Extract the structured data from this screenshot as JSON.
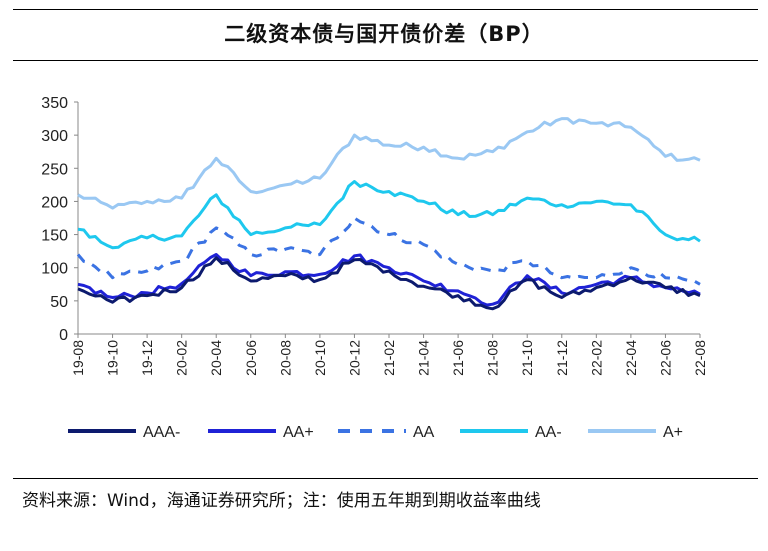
{
  "header": {
    "title": "二级资本债与国开债价差（BP）"
  },
  "footer": {
    "source": "资料来源：Wind，海通证券研究所；注：使用五年期到期收益率曲线"
  },
  "chart_data": {
    "type": "line",
    "title": "二级资本债与国开债价差（BP）",
    "xlabel": "",
    "ylabel": "",
    "ylim": [
      0,
      350
    ],
    "yticks": [
      0,
      50,
      100,
      150,
      200,
      250,
      300,
      350
    ],
    "grid": false,
    "legend": "bottom",
    "categories": [
      "19-08",
      "19-10",
      "19-12",
      "20-02",
      "20-04",
      "20-06",
      "20-08",
      "20-10",
      "20-12",
      "21-02",
      "21-04",
      "21-06",
      "21-08",
      "21-10",
      "21-12",
      "22-02",
      "22-04",
      "22-06",
      "22-08"
    ],
    "series": [
      {
        "name": "AAA-",
        "color": "#0c1a6e",
        "dash": "solid",
        "values": [
          68,
          48,
          58,
          70,
          115,
          80,
          88,
          82,
          112,
          95,
          72,
          58,
          38,
          82,
          55,
          70,
          85,
          70,
          58
        ]
      },
      {
        "name": "AA+",
        "color": "#1f22d6",
        "dash": "solid",
        "values": [
          75,
          55,
          62,
          76,
          120,
          88,
          94,
          90,
          118,
          100,
          80,
          65,
          45,
          88,
          62,
          75,
          85,
          70,
          60
        ]
      },
      {
        "name": "AA",
        "color": "#3b73e3",
        "dash": "dash",
        "values": [
          120,
          85,
          95,
          110,
          160,
          120,
          128,
          120,
          175,
          150,
          135,
          105,
          95,
          110,
          85,
          85,
          100,
          85,
          75
        ]
      },
      {
        "name": "AA-",
        "color": "#1ec8ee",
        "dash": "solid",
        "values": [
          158,
          130,
          145,
          148,
          210,
          150,
          160,
          165,
          230,
          215,
          200,
          180,
          180,
          205,
          195,
          200,
          195,
          150,
          140
        ]
      },
      {
        "name": "A+",
        "color": "#9ac8f3",
        "dash": "solid",
        "values": [
          210,
          190,
          200,
          205,
          265,
          215,
          225,
          235,
          300,
          285,
          282,
          265,
          275,
          305,
          325,
          318,
          312,
          268,
          262
        ]
      }
    ]
  }
}
